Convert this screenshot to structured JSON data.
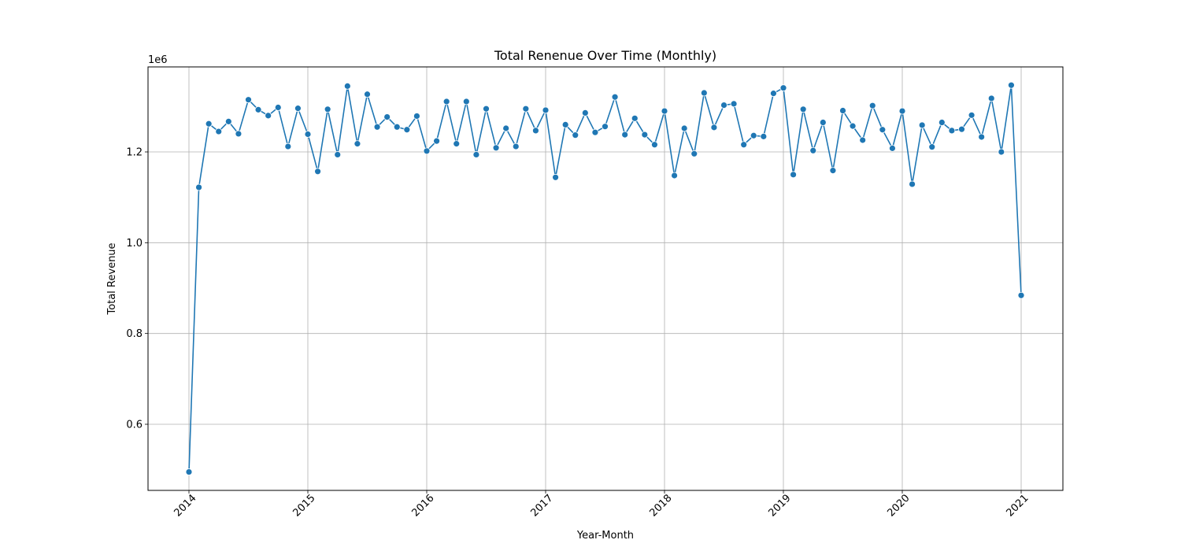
{
  "chart_data": {
    "type": "line",
    "title": "Total Renenue Over Time (Monthly)",
    "xlabel": "Year-Month",
    "ylabel": "Total Revenue",
    "y_offset_text": "1e6",
    "ylim": [
      0.45,
      1.38
    ],
    "y_ticks": [
      0.6,
      0.8,
      1.0,
      1.2
    ],
    "y_tick_labels": [
      "0.6",
      "0.8",
      "1.0",
      "1.2"
    ],
    "x_ticks": [
      "2014-01",
      "2015-01",
      "2016-01",
      "2017-01",
      "2018-01",
      "2019-01",
      "2020-01",
      "2021-01"
    ],
    "x_tick_labels": [
      "2014",
      "2015",
      "2016",
      "2017",
      "2018",
      "2019",
      "2020",
      "2021"
    ],
    "x_start": "2014-01",
    "grid": true,
    "line_color": "#1f77b4",
    "series": [
      {
        "x": [
          "2014-01",
          "2014-02",
          "2014-03",
          "2014-04",
          "2014-05",
          "2014-06",
          "2014-07",
          "2014-08",
          "2014-09",
          "2014-10",
          "2014-11",
          "2014-12",
          "2015-01",
          "2015-02",
          "2015-03",
          "2015-04",
          "2015-05",
          "2015-06",
          "2015-07",
          "2015-08",
          "2015-09",
          "2015-10",
          "2015-11",
          "2015-12",
          "2016-01",
          "2016-02",
          "2016-03",
          "2016-04",
          "2016-05",
          "2016-06",
          "2016-07",
          "2016-08",
          "2016-09",
          "2016-10",
          "2016-11",
          "2016-12",
          "2017-01",
          "2017-02",
          "2017-03",
          "2017-04",
          "2017-05",
          "2017-06",
          "2017-07",
          "2017-08",
          "2017-09",
          "2017-10",
          "2017-11",
          "2017-12",
          "2018-01",
          "2018-02",
          "2018-03",
          "2018-04",
          "2018-05",
          "2018-06",
          "2018-07",
          "2018-08",
          "2018-09",
          "2018-10",
          "2018-11",
          "2018-12",
          "2019-01",
          "2019-02",
          "2019-03",
          "2019-04",
          "2019-05",
          "2019-06",
          "2019-07",
          "2019-08",
          "2019-09",
          "2019-10",
          "2019-11",
          "2019-12",
          "2020-01",
          "2020-02",
          "2020-03",
          "2020-04",
          "2020-05",
          "2020-06",
          "2020-07",
          "2020-08",
          "2020-09",
          "2020-10",
          "2020-11",
          "2020-12",
          "2021-01"
        ],
        "values": [
          0.495,
          1.122,
          1.262,
          1.245,
          1.267,
          1.24,
          1.315,
          1.293,
          1.28,
          1.298,
          1.212,
          1.296,
          1.239,
          1.157,
          1.294,
          1.194,
          1.345,
          1.218,
          1.327,
          1.255,
          1.277,
          1.255,
          1.249,
          1.279,
          1.202,
          1.224,
          1.311,
          1.218,
          1.311,
          1.194,
          1.295,
          1.209,
          1.252,
          1.212,
          1.295,
          1.247,
          1.292,
          1.144,
          1.26,
          1.237,
          1.286,
          1.243,
          1.256,
          1.321,
          1.238,
          1.274,
          1.238,
          1.216,
          1.29,
          1.148,
          1.252,
          1.196,
          1.33,
          1.254,
          1.303,
          1.306,
          1.216,
          1.236,
          1.234,
          1.329,
          1.341,
          1.15,
          1.294,
          1.203,
          1.265,
          1.159,
          1.291,
          1.257,
          1.226,
          1.302,
          1.249,
          1.208,
          1.29,
          1.129,
          1.259,
          1.211,
          1.265,
          1.247,
          1.25,
          1.281,
          1.233,
          1.318,
          1.2,
          1.347,
          0.884
        ]
      }
    ]
  }
}
